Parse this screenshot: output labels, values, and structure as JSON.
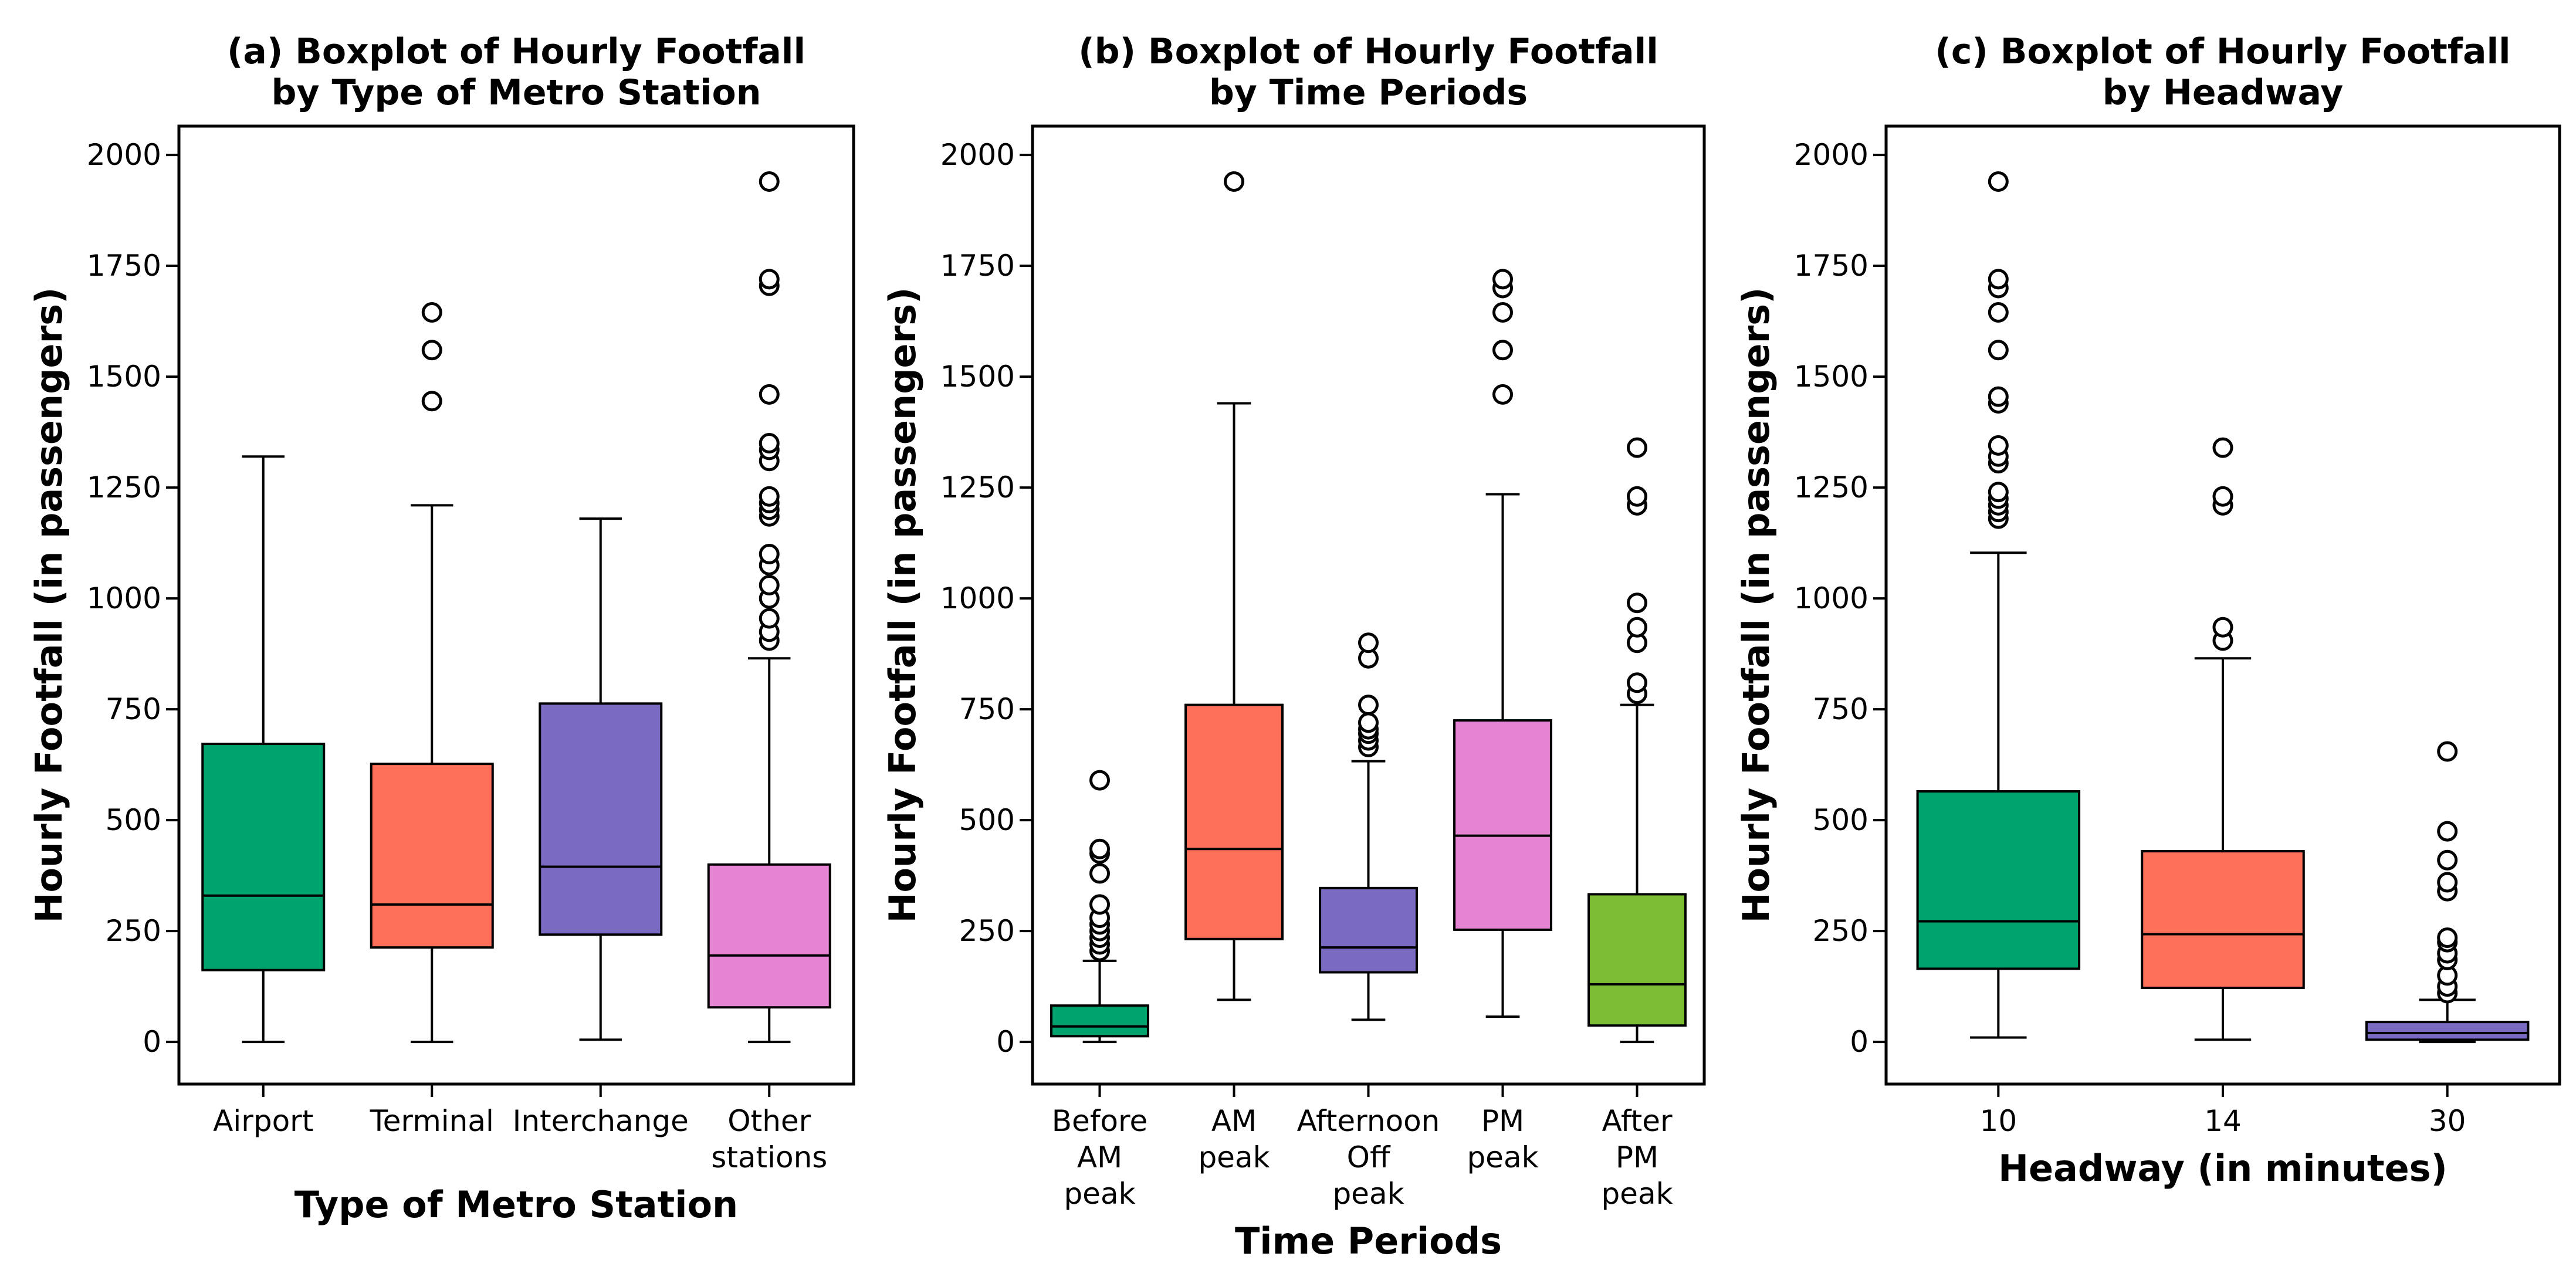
{
  "chart_data": [
    {
      "type": "boxplot",
      "panel": "a",
      "title_lines": [
        "(a) Boxplot of Hourly Footfall",
        "by Type of Metro Station"
      ],
      "xlabel": "Type of Metro Station",
      "ylabel": "Hourly Footfall (in passengers)",
      "ylim": [
        -95,
        2065
      ],
      "yticks": [
        "0",
        "250",
        "500",
        "750",
        "1000",
        "1250",
        "1500",
        "1750",
        "2000"
      ],
      "grid": false,
      "categories": [
        {
          "label_lines": [
            "Airport"
          ],
          "color": "#00A36E",
          "min": 0,
          "q1": 162,
          "median": 330,
          "q3": 672,
          "max": 1320,
          "outliers": []
        },
        {
          "label_lines": [
            "Terminal"
          ],
          "color": "#FF705A",
          "min": 0,
          "q1": 213,
          "median": 310,
          "q3": 627,
          "max": 1210,
          "outliers": [
            1445,
            1560,
            1645
          ]
        },
        {
          "label_lines": [
            "Interchange"
          ],
          "color": "#7B6AC2",
          "min": 5,
          "q1": 242,
          "median": 395,
          "q3": 763,
          "max": 1180,
          "outliers": []
        },
        {
          "label_lines": [
            "Other",
            "stations"
          ],
          "color": "#E684D4",
          "min": 0,
          "q1": 78,
          "median": 195,
          "q3": 400,
          "max": 865,
          "outliers": [
            905,
            925,
            955,
            1000,
            1030,
            1075,
            1100,
            1185,
            1200,
            1215,
            1230,
            1310,
            1335,
            1350,
            1460,
            1705,
            1720,
            1940
          ]
        }
      ]
    },
    {
      "type": "boxplot",
      "panel": "b",
      "title_lines": [
        "(b) Boxplot of Hourly Footfall",
        "by Time Periods"
      ],
      "xlabel": "Time Periods",
      "ylabel": "Hourly Footfall (in passengers)",
      "ylim": [
        -95,
        2065
      ],
      "yticks": [
        "0",
        "250",
        "500",
        "750",
        "1000",
        "1250",
        "1500",
        "1750",
        "2000"
      ],
      "grid": false,
      "categories": [
        {
          "label_lines": [
            "Before",
            "AM",
            "peak"
          ],
          "color": "#00A36E",
          "min": 0,
          "q1": 13,
          "median": 35,
          "q3": 82,
          "max": 183,
          "outliers": [
            205,
            220,
            235,
            250,
            265,
            280,
            310,
            380,
            425,
            435,
            590
          ]
        },
        {
          "label_lines": [
            "AM",
            "peak"
          ],
          "color": "#FF705A",
          "min": 95,
          "q1": 232,
          "median": 435,
          "q3": 760,
          "max": 1440,
          "outliers": [
            1940
          ]
        },
        {
          "label_lines": [
            "Afternoon",
            "Off",
            "peak"
          ],
          "color": "#7B6AC2",
          "min": 50,
          "q1": 157,
          "median": 213,
          "q3": 347,
          "max": 633,
          "outliers": [
            665,
            680,
            695,
            705,
            720,
            760,
            865,
            900
          ]
        },
        {
          "label_lines": [
            "PM",
            "peak"
          ],
          "color": "#E684D4",
          "min": 57,
          "q1": 253,
          "median": 465,
          "q3": 725,
          "max": 1235,
          "outliers": [
            1460,
            1560,
            1645,
            1700,
            1720
          ]
        },
        {
          "label_lines": [
            "After",
            "PM",
            "peak"
          ],
          "color": "#7DBD34",
          "min": 0,
          "q1": 37,
          "median": 130,
          "q3": 333,
          "max": 760,
          "outliers": [
            785,
            810,
            900,
            935,
            990,
            1210,
            1230,
            1340
          ]
        }
      ]
    },
    {
      "type": "boxplot",
      "panel": "c",
      "title_lines": [
        "(c) Boxplot of Hourly Footfall",
        "by Headway"
      ],
      "xlabel": "Headway (in minutes)",
      "ylabel": "Hourly Footfall (in passengers)",
      "ylim": [
        -95,
        2065
      ],
      "yticks": [
        "0",
        "250",
        "500",
        "750",
        "1000",
        "1250",
        "1500",
        "1750",
        "2000"
      ],
      "grid": false,
      "categories": [
        {
          "label_lines": [
            "10"
          ],
          "color": "#00A36E",
          "min": 10,
          "q1": 165,
          "median": 272,
          "q3": 565,
          "max": 1103,
          "outliers": [
            1180,
            1195,
            1210,
            1225,
            1240,
            1305,
            1320,
            1345,
            1440,
            1455,
            1560,
            1645,
            1700,
            1720,
            1940
          ]
        },
        {
          "label_lines": [
            "14"
          ],
          "color": "#FF705A",
          "min": 5,
          "q1": 122,
          "median": 243,
          "q3": 430,
          "max": 865,
          "outliers": [
            905,
            935,
            1210,
            1230,
            1340
          ]
        },
        {
          "label_lines": [
            "30"
          ],
          "color": "#7B6AC2",
          "min": 0,
          "q1": 5,
          "median": 20,
          "q3": 45,
          "max": 95,
          "outliers": [
            110,
            125,
            150,
            185,
            200,
            225,
            235,
            340,
            360,
            410,
            475,
            655
          ]
        }
      ]
    }
  ]
}
